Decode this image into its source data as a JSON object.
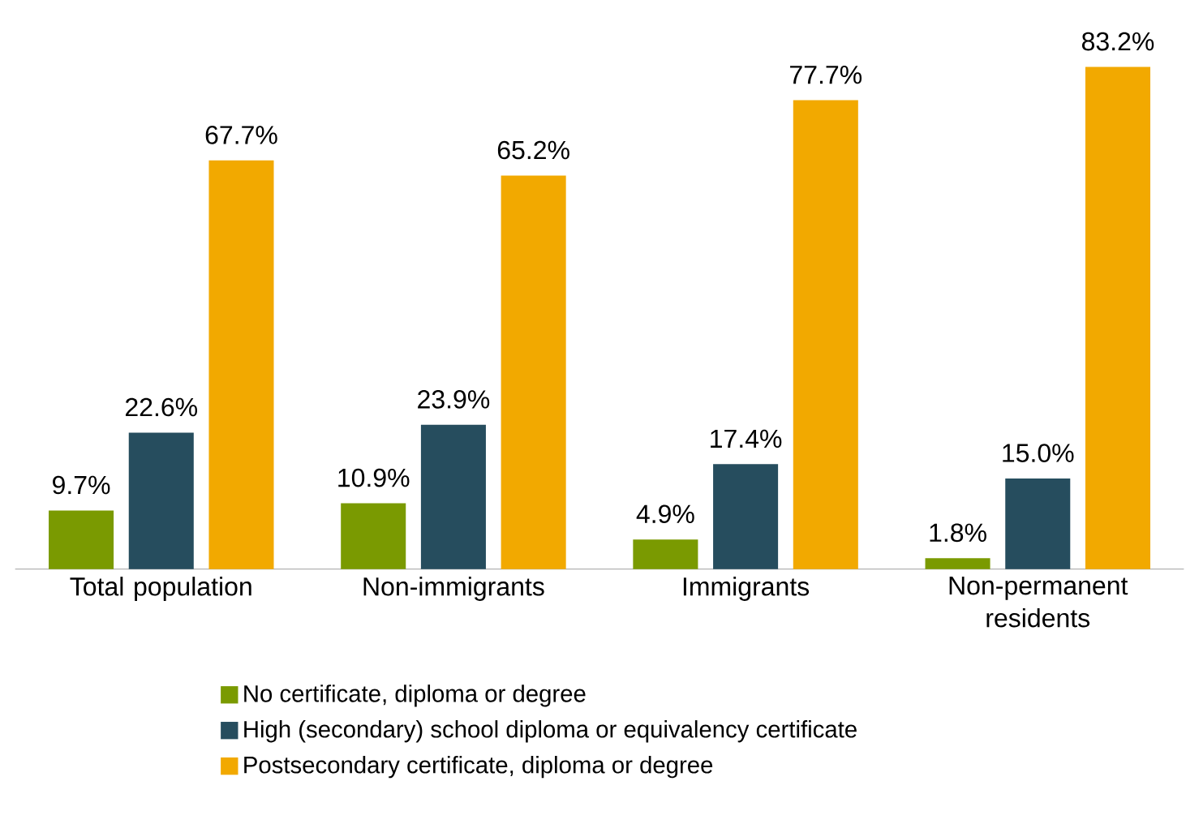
{
  "chart_data": {
    "type": "bar",
    "categories": [
      "Total population",
      "Non-immigrants",
      "Immigrants",
      "Non-permanent residents"
    ],
    "series": [
      {
        "name": "No certificate, diploma or degree",
        "color": "#7a9a01",
        "values": [
          9.7,
          10.9,
          4.9,
          1.8
        ],
        "value_labels": [
          "9.7%",
          "10.9%",
          "4.9%",
          "1.8%"
        ]
      },
      {
        "name": "High (secondary) school diploma or equivalency certificate",
        "color": "#264d5e",
        "values": [
          22.6,
          23.9,
          17.4,
          15.0
        ],
        "value_labels": [
          "22.6%",
          "23.9%",
          "17.4%",
          "15.0%"
        ]
      },
      {
        "name": "Postsecondary certificate, diploma or degree",
        "color": "#f2a900",
        "values": [
          67.7,
          65.2,
          77.7,
          83.2
        ],
        "value_labels": [
          "67.7%",
          "65.2%",
          "77.7%",
          "83.2%"
        ]
      }
    ],
    "legend": "bottom"
  }
}
